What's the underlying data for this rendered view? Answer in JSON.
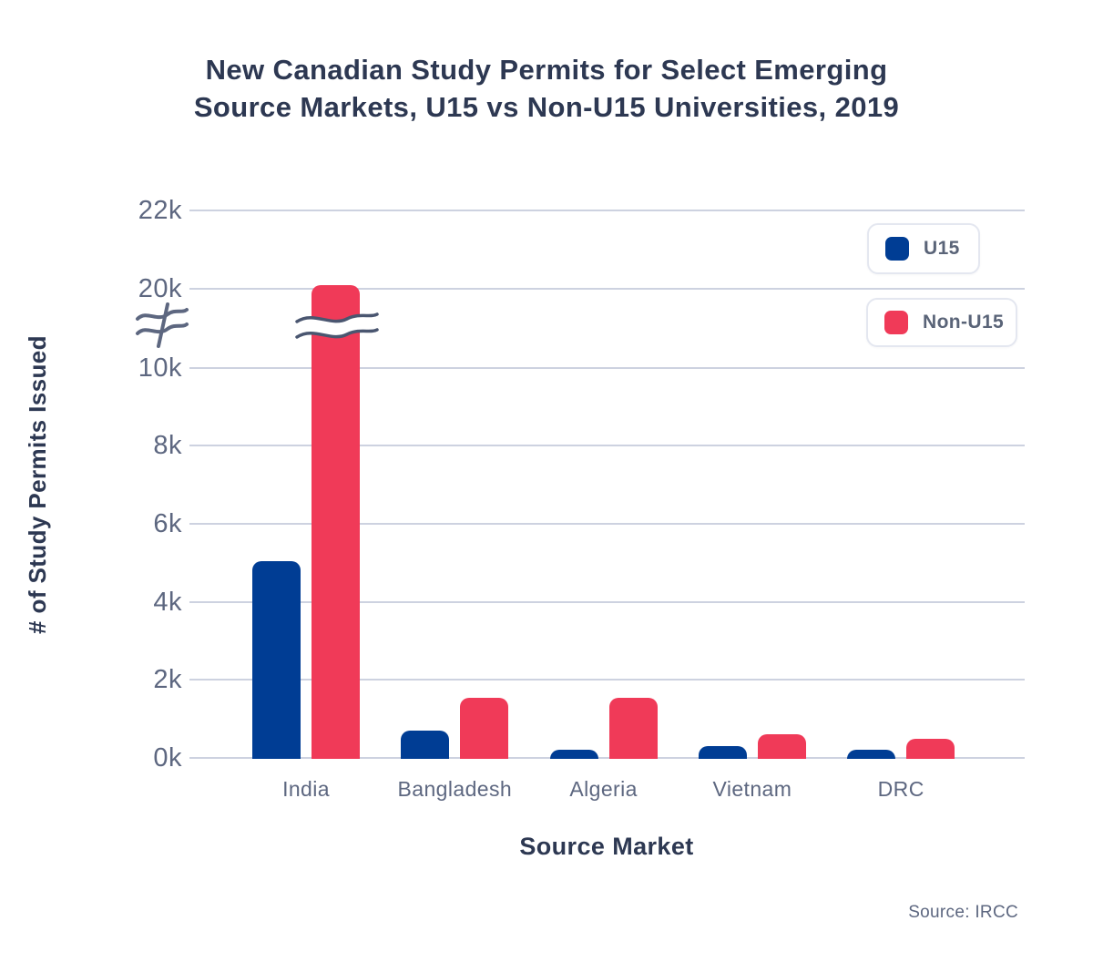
{
  "title": {
    "line1": "New Canadian Study Permits for Select Emerging",
    "line2": "Source Markets, U15 vs Non-U15 Universities, 2019"
  },
  "source_note": "Source: IRCC",
  "colors": {
    "u15": "#003D94",
    "non_u15": "#F03A58",
    "gridline": "#CDD2E0",
    "title_text": "#2D3852",
    "axis_text": "#5D6780",
    "break_mark": "#4A5670"
  },
  "chart_data": {
    "type": "bar",
    "title": "New Canadian Study Permits for Select Emerging Source Markets, U15 vs Non-U15 Universities, 2019",
    "xlabel": "Source Market",
    "ylabel": "# of Study Permits Issued",
    "categories": [
      "India",
      "Bangladesh",
      "Algeria",
      "Vietnam",
      "DRC"
    ],
    "series": [
      {
        "name": "U15",
        "color": "#003D94",
        "values": [
          5050,
          700,
          200,
          300,
          200
        ]
      },
      {
        "name": "Non-U15",
        "color": "#F03A58",
        "values": [
          20100,
          1550,
          1550,
          600,
          500
        ]
      }
    ],
    "y_ticks": [
      0,
      2000,
      4000,
      6000,
      8000,
      10000,
      20000,
      22000
    ],
    "y_tick_labels": [
      "0k",
      "2k",
      "4k",
      "6k",
      "8k",
      "10k",
      "20k",
      "22k"
    ],
    "ylim_note": "linear 0-10k, axis break, then 20k-22k",
    "axis_break": {
      "after": 10000,
      "resume_at": 20000
    },
    "grid": true,
    "legend_position": "top-right",
    "units": "study permits issued"
  }
}
